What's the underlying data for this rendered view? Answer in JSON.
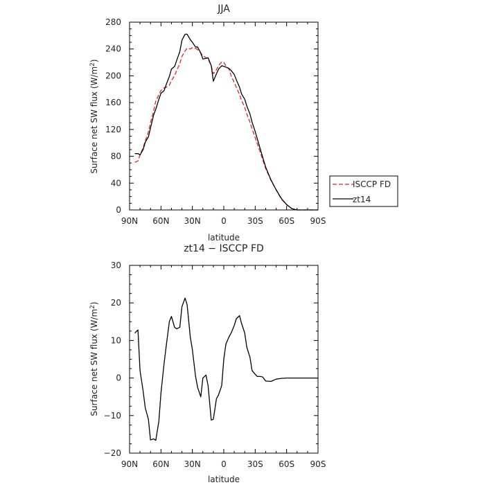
{
  "chart_data": [
    {
      "type": "line",
      "title": "JJA",
      "xlabel": "latitude",
      "ylabel": "Surface net SW flux (W/m",
      "ylabel_sup": "2",
      "ylabel_close": ")",
      "xlim": [
        90,
        -90
      ],
      "ylim": [
        0,
        280
      ],
      "x_ticks": [
        90,
        60,
        30,
        0,
        -30,
        -60,
        -90
      ],
      "x_tick_labels": [
        "90N",
        "60N",
        "30N",
        "0",
        "30S",
        "60S",
        "90S"
      ],
      "y_ticks": [
        0,
        40,
        80,
        120,
        160,
        200,
        240,
        280
      ],
      "y_tick_labels": [
        "0",
        "40",
        "80",
        "120",
        "160",
        "200",
        "240",
        "280"
      ],
      "legend_position": "right",
      "series": [
        {
          "name": "ISCCP FD",
          "color": "#e8211b",
          "dash": "dashed",
          "x": [
            85,
            82,
            80,
            77,
            75,
            72,
            70,
            67,
            65,
            62,
            60,
            57,
            55,
            52,
            50,
            47,
            45,
            42,
            40,
            37,
            35,
            32,
            30,
            27,
            25,
            22,
            20,
            17,
            15,
            12,
            10,
            7,
            5,
            2,
            0,
            -2,
            -5,
            -7,
            -10,
            -12,
            -15,
            -17,
            -20,
            -22,
            -25,
            -27,
            -30,
            -35,
            -40,
            -45,
            -50,
            -55,
            -60,
            -65,
            -70,
            -75,
            -80,
            -85,
            -90
          ],
          "y": [
            71,
            73,
            82,
            93,
            103,
            116,
            130,
            148,
            162,
            172,
            178,
            182,
            183,
            186,
            193,
            200,
            208,
            218,
            229,
            237,
            241,
            240,
            242,
            241,
            239,
            234,
            230,
            227,
            225,
            215,
            203,
            209,
            215,
            221,
            220,
            215,
            210,
            200,
            190,
            183,
            172,
            163,
            153,
            143,
            131,
            121,
            108,
            85,
            62,
            44,
            30,
            16,
            8,
            2,
            0,
            0,
            0,
            0,
            0
          ]
        },
        {
          "name": "zt14",
          "color": "#000000",
          "dash": "solid",
          "x": [
            85,
            82,
            80,
            77,
            75,
            72,
            70,
            67,
            65,
            62,
            60,
            57,
            55,
            52,
            50,
            47,
            45,
            42,
            40,
            37,
            35,
            32,
            30,
            27,
            25,
            22,
            20,
            17,
            15,
            12,
            10,
            7,
            5,
            2,
            0,
            -2,
            -5,
            -7,
            -10,
            -12,
            -15,
            -17,
            -20,
            -22,
            -25,
            -27,
            -30,
            -35,
            -40,
            -45,
            -50,
            -55,
            -60,
            -65,
            -70,
            -75,
            -80,
            -85,
            -90
          ],
          "y": [
            84,
            84,
            82,
            90,
            101,
            109,
            122,
            142,
            150,
            165,
            174,
            178,
            187,
            199,
            210,
            214,
            223,
            236,
            253,
            262,
            262,
            254,
            250,
            243,
            243,
            234,
            225,
            226,
            227,
            215,
            192,
            203,
            210,
            215,
            214,
            213,
            211,
            208,
            202,
            194,
            183,
            173,
            165,
            155,
            143,
            131,
            117,
            90,
            64,
            45,
            30,
            17,
            8,
            2,
            0,
            0,
            0,
            0,
            0
          ]
        }
      ]
    },
    {
      "type": "line",
      "title": "zt14 − ISCCP FD",
      "xlabel": "latitude",
      "ylabel": "Surface net SW flux (W/m",
      "ylabel_sup": "2",
      "ylabel_close": ")",
      "xlim": [
        90,
        -90
      ],
      "ylim": [
        -20,
        30
      ],
      "x_ticks": [
        90,
        60,
        30,
        0,
        -30,
        -60,
        -90
      ],
      "x_tick_labels": [
        "90N",
        "60N",
        "30N",
        "0",
        "30S",
        "60S",
        "90S"
      ],
      "y_ticks": [
        -20,
        -10,
        0,
        10,
        20,
        30
      ],
      "y_tick_labels": [
        "−20",
        "−10",
        "0",
        "10",
        "20",
        "30"
      ],
      "series": [
        {
          "color": "#000000",
          "dash": "solid",
          "x": [
            85,
            82,
            80,
            77,
            75,
            72,
            70,
            67,
            65,
            62,
            60,
            57,
            55,
            52,
            50,
            47,
            45,
            42,
            40,
            37,
            35,
            32,
            30,
            27,
            25,
            22,
            20,
            17,
            15,
            12,
            10,
            7,
            5,
            2,
            0,
            -2,
            -5,
            -7,
            -10,
            -12,
            -15,
            -17,
            -20,
            -22,
            -25,
            -27,
            -30,
            -32,
            -35,
            -37,
            -40,
            -45,
            -50,
            -55,
            -60,
            -65,
            -67,
            -70,
            -75,
            -80,
            -85,
            -90
          ],
          "y": [
            12,
            12.8,
            2,
            -3.5,
            -8,
            -11,
            -16.5,
            -16.2,
            -16.6,
            -11.5,
            -4,
            4,
            8.5,
            15,
            16.4,
            13.5,
            13.1,
            13.5,
            19,
            21.3,
            19.5,
            11,
            7.5,
            0.5,
            -2.5,
            -5,
            0,
            0.8,
            -2,
            -11.2,
            -11,
            -5.5,
            -4.5,
            -2,
            5,
            9,
            11,
            12,
            14,
            15.8,
            16.6,
            14.5,
            12,
            8.2,
            5.5,
            2,
            1,
            0.4,
            0.4,
            0.3,
            -0.8,
            -0.9,
            -0.3,
            -0.1,
            0,
            0,
            0,
            0,
            0,
            0,
            0,
            0
          ]
        }
      ]
    }
  ]
}
